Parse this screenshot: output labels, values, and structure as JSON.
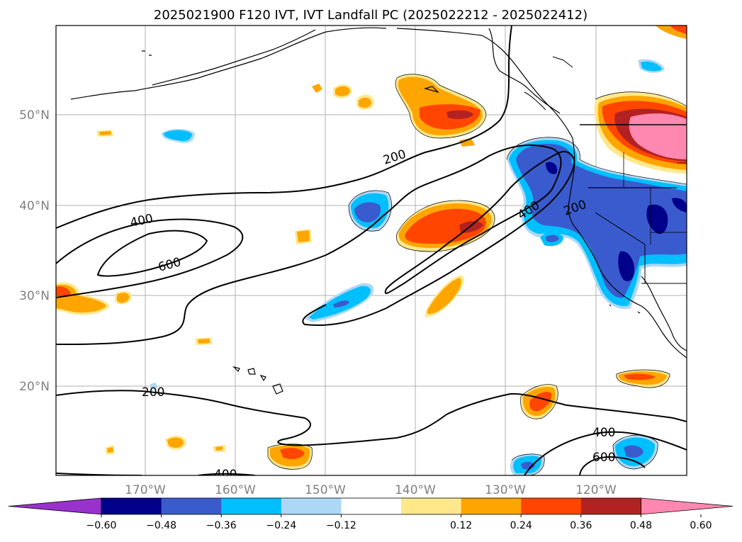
{
  "title": "2025021900 F120 IVT, IVT Landfall PC (2025022212 - 2025022412)",
  "axes": {
    "lon_labels": [
      "170°W",
      "160°W",
      "150°W",
      "140°W",
      "130°W",
      "120°W"
    ],
    "lat_labels": [
      "50°N",
      "40°N",
      "30°N",
      "20°N"
    ]
  },
  "colorbar": {
    "tick_labels": [
      "−0.60",
      "−0.48",
      "−0.36",
      "−0.24",
      "−0.12",
      "0.12",
      "0.24",
      "0.36",
      "0.48",
      "0.60"
    ],
    "colors": [
      "#9932cc",
      "#00008b",
      "#3a5bcd",
      "#00bfff",
      "#add8f5",
      "#ffffff",
      "#ffe88c",
      "#ffa500",
      "#ff4500",
      "#b22222",
      "#ff88b0"
    ]
  },
  "contour_labels": [
    "400",
    "600",
    "200",
    "400",
    "200",
    "200",
    "400",
    "600",
    "400"
  ]
}
